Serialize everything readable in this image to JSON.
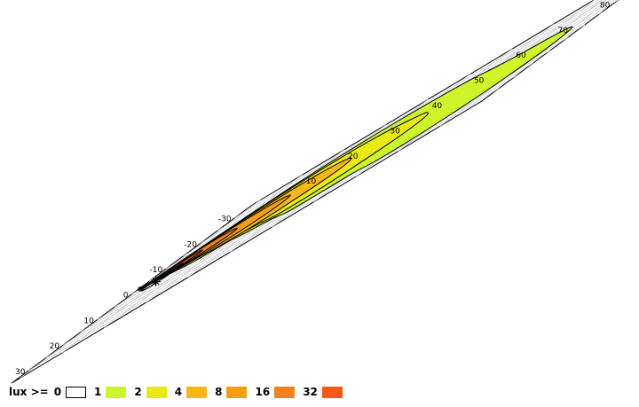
{
  "chart_data": {
    "type": "contour",
    "x_ticks": [
      -30,
      -20,
      -10,
      0,
      10,
      20,
      30
    ],
    "y_ticks": [
      10,
      20,
      30,
      40,
      50,
      60,
      70,
      80,
      90,
      100
    ],
    "xlim": [
      -35,
      35
    ],
    "ylim": [
      -2,
      110
    ],
    "source_marker": [
      0,
      0
    ],
    "peak_marker": [
      4,
      7
    ],
    "legend": {
      "title": "lux >=",
      "levels": [
        {
          "value": "0",
          "color": "#ffffff"
        },
        {
          "value": "1",
          "color": "#ccf52a"
        },
        {
          "value": "2",
          "color": "#ebe914"
        },
        {
          "value": "4",
          "color": "#f5b814"
        },
        {
          "value": "8",
          "color": "#f59e14"
        },
        {
          "value": "16",
          "color": "#f5801e"
        },
        {
          "value": "32",
          "color": "#f55a14"
        }
      ]
    },
    "contours": [
      {
        "level": "1",
        "points": [
          [
            0,
            0
          ],
          [
            -7,
            4
          ],
          [
            -15,
            9
          ],
          [
            -22,
            15
          ],
          [
            -26,
            22
          ],
          [
            -27.5,
            30
          ],
          [
            -27.5,
            40
          ],
          [
            -26,
            50
          ],
          [
            -23,
            60
          ],
          [
            -18,
            70
          ],
          [
            -14,
            80
          ],
          [
            -11,
            90
          ],
          [
            -6,
            98
          ],
          [
            5,
            102
          ],
          [
            16,
            100
          ],
          [
            23,
            95
          ],
          [
            27,
            87
          ],
          [
            27,
            78
          ],
          [
            24,
            70
          ],
          [
            24,
            62
          ],
          [
            23,
            54
          ],
          [
            18,
            46
          ],
          [
            15,
            38
          ],
          [
            11,
            30
          ],
          [
            10,
            22
          ],
          [
            6,
            13
          ],
          [
            2,
            4
          ]
        ]
      },
      {
        "level": "2",
        "points": [
          [
            0,
            0
          ],
          [
            -6,
            3
          ],
          [
            -13,
            8
          ],
          [
            -19,
            14
          ],
          [
            -22,
            22
          ],
          [
            -22.5,
            32
          ],
          [
            -20,
            42
          ],
          [
            -15,
            52
          ],
          [
            -10,
            60
          ],
          [
            -2,
            66
          ],
          [
            6,
            66
          ],
          [
            13,
            60
          ],
          [
            16,
            54
          ],
          [
            16,
            46
          ],
          [
            12,
            38
          ],
          [
            9,
            30
          ],
          [
            7,
            22
          ],
          [
            5,
            14
          ],
          [
            2,
            5
          ]
        ]
      },
      {
        "level": "4",
        "points": [
          [
            0,
            0
          ],
          [
            -5,
            3
          ],
          [
            -11,
            7
          ],
          [
            -15,
            13
          ],
          [
            -17,
            20
          ],
          [
            -16.5,
            28
          ],
          [
            -14,
            36
          ],
          [
            -10,
            42
          ],
          [
            -4,
            46
          ],
          [
            2,
            46
          ],
          [
            7,
            41
          ],
          [
            10,
            34
          ],
          [
            9,
            26
          ],
          [
            6,
            18
          ],
          [
            3,
            10
          ],
          [
            1,
            4
          ]
        ]
      },
      {
        "level": "8",
        "points": [
          [
            0,
            0
          ],
          [
            -4,
            2
          ],
          [
            -9,
            6
          ],
          [
            -12,
            12
          ],
          [
            -12.5,
            19
          ],
          [
            -11,
            25
          ],
          [
            -7,
            30
          ],
          [
            -1,
            31
          ],
          [
            4,
            27
          ],
          [
            5,
            20
          ],
          [
            4,
            13
          ],
          [
            2,
            6
          ]
        ]
      },
      {
        "level": "16",
        "points": [
          [
            0,
            0
          ],
          [
            -3,
            1.5
          ],
          [
            -7,
            5
          ],
          [
            -9,
            10
          ],
          [
            -8,
            15
          ],
          [
            -5,
            19
          ],
          [
            -1,
            19.5
          ],
          [
            2,
            16
          ],
          [
            2.5,
            10
          ],
          [
            1.5,
            4
          ]
        ]
      },
      {
        "level": "32",
        "points": [
          [
            0,
            0
          ],
          [
            -2,
            2
          ],
          [
            -4,
            5
          ],
          [
            -5,
            9
          ],
          [
            -3.5,
            12
          ],
          [
            -1,
            12.5
          ],
          [
            1,
            10
          ],
          [
            1.5,
            6
          ],
          [
            1,
            2
          ]
        ]
      }
    ],
    "inner_ring": [
      [
        1,
        4
      ],
      [
        -1,
        6
      ],
      [
        -1,
        9
      ],
      [
        1,
        11
      ],
      [
        4,
        11.5
      ],
      [
        7,
        9.5
      ],
      [
        6.5,
        6
      ],
      [
        4,
        4
      ]
    ]
  }
}
